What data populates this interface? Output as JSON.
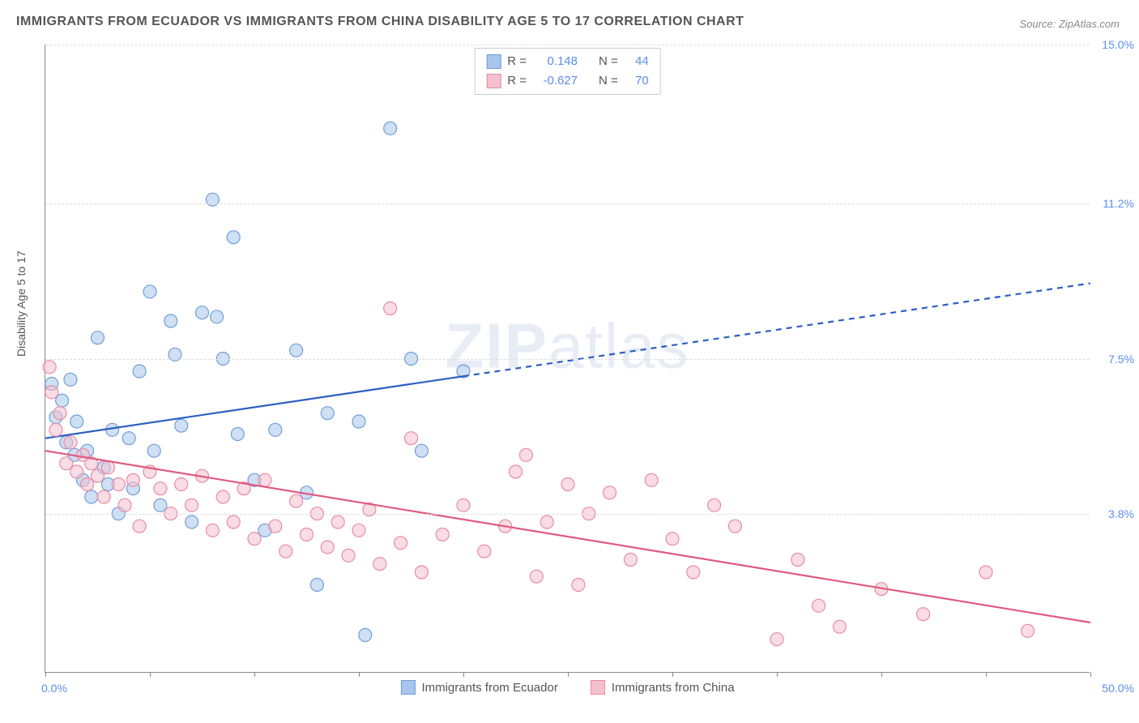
{
  "title": "IMMIGRANTS FROM ECUADOR VS IMMIGRANTS FROM CHINA DISABILITY AGE 5 TO 17 CORRELATION CHART",
  "source_label": "Source: ",
  "source_name": "ZipAtlas.com",
  "y_axis_label": "Disability Age 5 to 17",
  "watermark_bold": "ZIP",
  "watermark_light": "atlas",
  "chart": {
    "type": "scatter",
    "background_color": "#ffffff",
    "grid_color": "#dddddd",
    "axis_color": "#888888",
    "tick_label_color": "#5b8def",
    "text_color": "#555555",
    "xlim": [
      0,
      50
    ],
    "ylim": [
      0,
      15
    ],
    "x_ticks": [
      0,
      5,
      10,
      15,
      20,
      25,
      30,
      35,
      40,
      45,
      50
    ],
    "x_tick_labels": {
      "0": "0.0%",
      "50": "50.0%"
    },
    "y_grid": [
      3.8,
      7.5,
      11.2,
      15.0
    ],
    "y_tick_labels": [
      "3.8%",
      "7.5%",
      "11.2%",
      "15.0%"
    ],
    "marker_radius": 8,
    "marker_opacity": 0.55,
    "line_width": 2.2
  },
  "series": [
    {
      "name": "Immigrants from Ecuador",
      "color_fill": "#a8c5eb",
      "color_stroke": "#6f9fd8",
      "line_color": "#2b5fc1",
      "r_label": "R =",
      "r_value": "0.148",
      "n_label": "N =",
      "n_value": "44",
      "trend": {
        "x1": 0,
        "y1": 5.6,
        "x2": 50,
        "y2": 9.3,
        "solid_until_x": 20
      },
      "points": [
        [
          0.3,
          6.9
        ],
        [
          0.5,
          6.1
        ],
        [
          0.8,
          6.5
        ],
        [
          1.0,
          5.5
        ],
        [
          1.2,
          7.0
        ],
        [
          1.4,
          5.2
        ],
        [
          1.5,
          6.0
        ],
        [
          1.8,
          4.6
        ],
        [
          2.0,
          5.3
        ],
        [
          2.2,
          4.2
        ],
        [
          2.5,
          8.0
        ],
        [
          2.8,
          4.9
        ],
        [
          3.0,
          4.5
        ],
        [
          3.2,
          5.8
        ],
        [
          3.5,
          3.8
        ],
        [
          4.0,
          5.6
        ],
        [
          4.2,
          4.4
        ],
        [
          4.5,
          7.2
        ],
        [
          5.0,
          9.1
        ],
        [
          5.2,
          5.3
        ],
        [
          5.5,
          4.0
        ],
        [
          6.0,
          8.4
        ],
        [
          6.2,
          7.6
        ],
        [
          6.5,
          5.9
        ],
        [
          7.0,
          3.6
        ],
        [
          7.5,
          8.6
        ],
        [
          8.0,
          11.3
        ],
        [
          8.2,
          8.5
        ],
        [
          8.5,
          7.5
        ],
        [
          9.0,
          10.4
        ],
        [
          9.2,
          5.7
        ],
        [
          10.0,
          4.6
        ],
        [
          10.5,
          3.4
        ],
        [
          11.0,
          5.8
        ],
        [
          12.0,
          7.7
        ],
        [
          12.5,
          4.3
        ],
        [
          13.0,
          2.1
        ],
        [
          13.5,
          6.2
        ],
        [
          15.0,
          6.0
        ],
        [
          15.3,
          0.9
        ],
        [
          16.5,
          13.0
        ],
        [
          17.5,
          7.5
        ],
        [
          18.0,
          5.3
        ],
        [
          20.0,
          7.2
        ]
      ]
    },
    {
      "name": "Immigrants from China",
      "color_fill": "#f4c0cd",
      "color_stroke": "#e88ba4",
      "line_color": "#e05a7f",
      "r_label": "R =",
      "r_value": "-0.627",
      "n_label": "N =",
      "n_value": "70",
      "trend": {
        "x1": 0,
        "y1": 5.3,
        "x2": 50,
        "y2": 1.2,
        "solid_until_x": 50
      },
      "points": [
        [
          0.2,
          7.3
        ],
        [
          0.3,
          6.7
        ],
        [
          0.5,
          5.8
        ],
        [
          0.7,
          6.2
        ],
        [
          1.0,
          5.0
        ],
        [
          1.2,
          5.5
        ],
        [
          1.5,
          4.8
        ],
        [
          1.8,
          5.2
        ],
        [
          2.0,
          4.5
        ],
        [
          2.2,
          5.0
        ],
        [
          2.5,
          4.7
        ],
        [
          2.8,
          4.2
        ],
        [
          3.0,
          4.9
        ],
        [
          3.5,
          4.5
        ],
        [
          3.8,
          4.0
        ],
        [
          4.2,
          4.6
        ],
        [
          4.5,
          3.5
        ],
        [
          5.0,
          4.8
        ],
        [
          5.5,
          4.4
        ],
        [
          6.0,
          3.8
        ],
        [
          6.5,
          4.5
        ],
        [
          7.0,
          4.0
        ],
        [
          7.5,
          4.7
        ],
        [
          8.0,
          3.4
        ],
        [
          8.5,
          4.2
        ],
        [
          9.0,
          3.6
        ],
        [
          9.5,
          4.4
        ],
        [
          10.0,
          3.2
        ],
        [
          10.5,
          4.6
        ],
        [
          11.0,
          3.5
        ],
        [
          11.5,
          2.9
        ],
        [
          12.0,
          4.1
        ],
        [
          12.5,
          3.3
        ],
        [
          13.0,
          3.8
        ],
        [
          13.5,
          3.0
        ],
        [
          14.0,
          3.6
        ],
        [
          14.5,
          2.8
        ],
        [
          15.0,
          3.4
        ],
        [
          15.5,
          3.9
        ],
        [
          16.0,
          2.6
        ],
        [
          16.5,
          8.7
        ],
        [
          17.0,
          3.1
        ],
        [
          17.5,
          5.6
        ],
        [
          18.0,
          2.4
        ],
        [
          19.0,
          3.3
        ],
        [
          20.0,
          4.0
        ],
        [
          21.0,
          2.9
        ],
        [
          22.0,
          3.5
        ],
        [
          22.5,
          4.8
        ],
        [
          23.0,
          5.2
        ],
        [
          23.5,
          2.3
        ],
        [
          24.0,
          3.6
        ],
        [
          25.0,
          4.5
        ],
        [
          25.5,
          2.1
        ],
        [
          26.0,
          3.8
        ],
        [
          27.0,
          4.3
        ],
        [
          28.0,
          2.7
        ],
        [
          29.0,
          4.6
        ],
        [
          30.0,
          3.2
        ],
        [
          31.0,
          2.4
        ],
        [
          32.0,
          4.0
        ],
        [
          33.0,
          3.5
        ],
        [
          35.0,
          0.8
        ],
        [
          36.0,
          2.7
        ],
        [
          37.0,
          1.6
        ],
        [
          38.0,
          1.1
        ],
        [
          40.0,
          2.0
        ],
        [
          42.0,
          1.4
        ],
        [
          45.0,
          2.4
        ],
        [
          47.0,
          1.0
        ]
      ]
    }
  ]
}
